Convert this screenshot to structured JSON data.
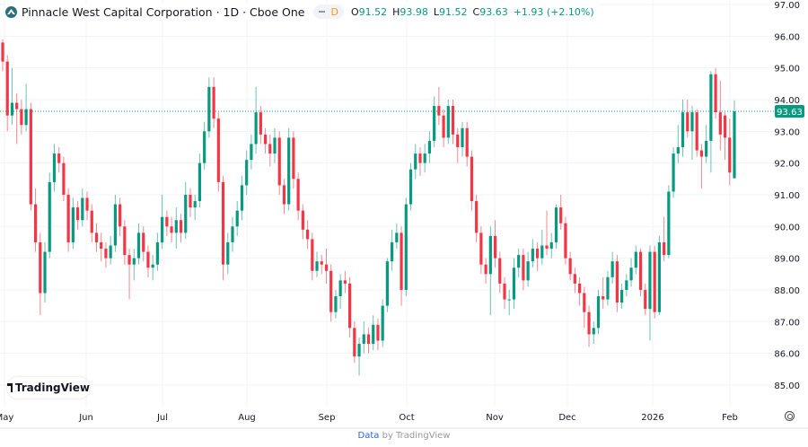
{
  "header": {
    "title": "Pinnacle West Capital Corporation · 1D · Cboe One",
    "interval_badge": "D",
    "ohlc": {
      "o_label": "O",
      "o": "91.52",
      "h_label": "H",
      "h": "93.98",
      "l_label": "L",
      "l": "91.52",
      "c_label": "C",
      "c": "93.63",
      "change": "+1.93 (+2.10%)"
    }
  },
  "badge": {
    "label": "TradingView"
  },
  "footer": {
    "link": "Data",
    "text": " by TradingView"
  },
  "colors": {
    "up": "#089981",
    "down": "#F23645",
    "grid": "#f0f3fa",
    "last_price": "#089981"
  },
  "icons": {
    "logo": "pinnacle-logo-icon",
    "settings": "settings-icon",
    "tv": "tradingview-logo-icon"
  },
  "chart_data": {
    "type": "candlestick",
    "ylim": [
      84.5,
      97.2
    ],
    "y_ticks": [
      "97.00",
      "96.00",
      "95.00",
      "94.00",
      "93.00",
      "92.00",
      "91.00",
      "90.00",
      "89.00",
      "88.00",
      "87.00",
      "86.00",
      "85.00"
    ],
    "x_ticks": [
      "May",
      "Jun",
      "Jul",
      "Aug",
      "Sep",
      "Oct",
      "Nov",
      "Dec",
      "2026",
      "Feb"
    ],
    "last_price": "93.63",
    "grid": true,
    "candles_ohlc": [
      [
        95.8,
        95.9,
        94.9,
        95.2
      ],
      [
        95.2,
        95.4,
        93.0,
        93.5
      ],
      [
        93.5,
        95.0,
        93.2,
        93.9
      ],
      [
        93.9,
        94.2,
        92.6,
        93.7
      ],
      [
        93.7,
        94.0,
        92.9,
        93.2
      ],
      [
        93.2,
        94.5,
        93.0,
        93.7
      ],
      [
        93.7,
        93.9,
        90.5,
        90.7
      ],
      [
        90.7,
        91.2,
        89.2,
        89.5
      ],
      [
        89.5,
        89.8,
        87.2,
        87.9
      ],
      [
        87.9,
        89.5,
        87.6,
        89.2
      ],
      [
        89.2,
        91.7,
        89.0,
        91.4
      ],
      [
        91.4,
        92.6,
        91.1,
        92.3
      ],
      [
        92.3,
        92.5,
        91.7,
        92.0
      ],
      [
        92.0,
        92.2,
        90.8,
        91.0
      ],
      [
        91.0,
        91.2,
        89.2,
        89.5
      ],
      [
        89.5,
        90.9,
        89.3,
        90.6
      ],
      [
        90.6,
        90.8,
        89.9,
        90.2
      ],
      [
        90.2,
        91.2,
        90.0,
        90.9
      ],
      [
        90.9,
        91.1,
        90.2,
        90.5
      ],
      [
        90.5,
        90.7,
        89.5,
        89.8
      ],
      [
        89.8,
        90.1,
        89.2,
        89.5
      ],
      [
        89.5,
        89.8,
        88.9,
        89.3
      ],
      [
        89.3,
        89.5,
        88.7,
        89.0
      ],
      [
        89.0,
        89.7,
        88.8,
        89.4
      ],
      [
        89.4,
        91.0,
        89.2,
        90.7
      ],
      [
        90.7,
        90.9,
        89.7,
        90.0
      ],
      [
        90.0,
        90.2,
        88.8,
        89.1
      ],
      [
        89.1,
        89.3,
        87.7,
        88.8
      ],
      [
        88.8,
        89.3,
        88.3,
        89.0
      ],
      [
        89.0,
        90.1,
        88.8,
        89.8
      ],
      [
        89.8,
        90.0,
        88.9,
        89.2
      ],
      [
        89.2,
        89.4,
        88.4,
        88.7
      ],
      [
        88.7,
        89.1,
        88.3,
        88.8
      ],
      [
        88.8,
        89.8,
        88.6,
        89.5
      ],
      [
        89.5,
        91.0,
        89.3,
        90.3
      ],
      [
        90.3,
        90.5,
        89.7,
        90.0
      ],
      [
        90.0,
        90.3,
        89.5,
        89.8
      ],
      [
        89.8,
        90.6,
        89.3,
        90.2
      ],
      [
        90.2,
        90.4,
        89.5,
        89.8
      ],
      [
        89.8,
        91.4,
        89.6,
        91.0
      ],
      [
        91.0,
        91.2,
        90.3,
        90.6
      ],
      [
        90.6,
        91.0,
        90.2,
        90.8
      ],
      [
        90.8,
        92.3,
        90.6,
        92.0
      ],
      [
        92.0,
        93.3,
        91.8,
        93.0
      ],
      [
        93.0,
        94.7,
        92.8,
        94.4
      ],
      [
        94.4,
        94.7,
        93.1,
        93.4
      ],
      [
        93.4,
        93.6,
        91.1,
        91.4
      ],
      [
        91.4,
        91.6,
        88.3,
        88.8
      ],
      [
        88.8,
        89.8,
        88.5,
        89.5
      ],
      [
        89.5,
        90.3,
        89.2,
        90.0
      ],
      [
        90.0,
        90.8,
        89.7,
        90.5
      ],
      [
        90.5,
        91.6,
        90.2,
        91.3
      ],
      [
        91.3,
        92.4,
        91.0,
        92.1
      ],
      [
        92.1,
        92.9,
        91.8,
        92.6
      ],
      [
        92.6,
        94.4,
        92.3,
        93.6
      ],
      [
        93.6,
        93.8,
        92.6,
        92.9
      ],
      [
        92.9,
        93.1,
        92.3,
        92.6
      ],
      [
        92.6,
        92.9,
        91.9,
        92.3
      ],
      [
        92.3,
        93.1,
        92.0,
        92.8
      ],
      [
        92.8,
        93.0,
        91.0,
        91.3
      ],
      [
        91.3,
        91.5,
        90.4,
        90.7
      ],
      [
        90.7,
        93.1,
        90.5,
        92.8
      ],
      [
        92.8,
        93.0,
        91.2,
        91.5
      ],
      [
        91.5,
        91.7,
        90.2,
        90.5
      ],
      [
        90.5,
        90.7,
        89.6,
        89.9
      ],
      [
        89.9,
        90.2,
        89.3,
        89.6
      ],
      [
        89.6,
        89.8,
        88.3,
        88.6
      ],
      [
        88.6,
        89.2,
        88.4,
        88.9
      ],
      [
        88.9,
        89.1,
        88.5,
        88.8
      ],
      [
        88.8,
        89.3,
        88.2,
        88.6
      ],
      [
        88.6,
        88.8,
        87.0,
        87.3
      ],
      [
        87.3,
        88.0,
        87.1,
        87.8
      ],
      [
        87.8,
        88.5,
        87.4,
        88.3
      ],
      [
        88.3,
        88.6,
        87.9,
        88.2
      ],
      [
        88.2,
        88.4,
        86.5,
        86.8
      ],
      [
        86.8,
        87.0,
        85.7,
        85.9
      ],
      [
        85.9,
        86.5,
        85.3,
        86.3
      ],
      [
        86.3,
        87.0,
        86.0,
        86.6
      ],
      [
        86.6,
        86.8,
        86.0,
        86.3
      ],
      [
        86.3,
        87.2,
        86.1,
        86.9
      ],
      [
        86.9,
        87.1,
        86.1,
        86.4
      ],
      [
        86.4,
        87.7,
        86.2,
        87.5
      ],
      [
        87.5,
        89.0,
        87.3,
        88.9
      ],
      [
        88.9,
        89.9,
        88.6,
        89.5
      ],
      [
        89.5,
        90.1,
        89.3,
        89.8
      ],
      [
        89.8,
        90.0,
        87.5,
        88.0
      ],
      [
        88.0,
        90.9,
        87.8,
        90.7
      ],
      [
        90.7,
        92.0,
        90.5,
        91.8
      ],
      [
        91.8,
        92.6,
        91.5,
        92.3
      ],
      [
        92.3,
        92.5,
        91.6,
        92.0
      ],
      [
        92.0,
        92.6,
        91.7,
        92.3
      ],
      [
        92.3,
        93.0,
        92.0,
        92.7
      ],
      [
        92.7,
        94.1,
        92.5,
        93.8
      ],
      [
        93.8,
        94.4,
        93.2,
        93.5
      ],
      [
        93.5,
        93.7,
        92.5,
        92.8
      ],
      [
        92.8,
        94.0,
        92.6,
        93.8
      ],
      [
        93.8,
        94.0,
        92.6,
        92.9
      ],
      [
        92.9,
        93.1,
        92.0,
        92.5
      ],
      [
        92.5,
        93.3,
        92.2,
        93.1
      ],
      [
        93.1,
        93.3,
        91.9,
        92.2
      ],
      [
        92.2,
        92.4,
        90.5,
        90.8
      ],
      [
        90.8,
        91.0,
        89.5,
        89.8
      ],
      [
        89.8,
        90.0,
        88.5,
        88.8
      ],
      [
        88.8,
        89.0,
        88.2,
        88.5
      ],
      [
        88.5,
        90.0,
        87.2,
        89.7
      ],
      [
        89.7,
        90.2,
        88.7,
        89.0
      ],
      [
        89.0,
        89.2,
        87.9,
        88.2
      ],
      [
        88.2,
        88.4,
        87.4,
        87.7
      ],
      [
        87.7,
        88.0,
        87.2,
        87.7
      ],
      [
        87.7,
        89.0,
        87.4,
        88.7
      ],
      [
        88.7,
        89.3,
        88.4,
        89.1
      ],
      [
        89.1,
        89.3,
        88.0,
        88.3
      ],
      [
        88.3,
        89.2,
        88.1,
        88.9
      ],
      [
        88.9,
        89.6,
        88.7,
        89.3
      ],
      [
        89.3,
        89.5,
        88.6,
        89.0
      ],
      [
        89.0,
        89.9,
        88.8,
        89.4
      ],
      [
        89.4,
        90.5,
        89.1,
        89.3
      ],
      [
        89.3,
        89.8,
        89.0,
        89.5
      ],
      [
        89.5,
        90.7,
        89.3,
        90.6
      ],
      [
        90.6,
        91.0,
        89.9,
        90.1
      ],
      [
        90.1,
        90.3,
        88.8,
        89.0
      ],
      [
        89.0,
        89.2,
        88.3,
        88.5
      ],
      [
        88.5,
        88.7,
        87.9,
        88.2
      ],
      [
        88.2,
        88.4,
        87.5,
        87.9
      ],
      [
        87.9,
        88.1,
        86.8,
        87.3
      ],
      [
        87.3,
        87.5,
        86.2,
        86.6
      ],
      [
        86.6,
        87.0,
        86.3,
        86.8
      ],
      [
        86.8,
        88.0,
        86.6,
        87.8
      ],
      [
        87.8,
        88.4,
        87.4,
        87.7
      ],
      [
        87.7,
        88.6,
        87.5,
        88.4
      ],
      [
        88.4,
        89.2,
        88.2,
        88.9
      ],
      [
        88.9,
        89.1,
        87.3,
        87.6
      ],
      [
        87.6,
        88.2,
        87.4,
        88.0
      ],
      [
        88.0,
        88.5,
        87.8,
        88.3
      ],
      [
        88.3,
        89.0,
        88.1,
        88.7
      ],
      [
        88.7,
        89.4,
        88.5,
        89.2
      ],
      [
        89.2,
        89.3,
        87.8,
        88.0
      ],
      [
        88.0,
        88.2,
        87.2,
        87.4
      ],
      [
        87.4,
        89.4,
        86.4,
        89.2
      ],
      [
        89.2,
        89.4,
        87.1,
        87.3
      ],
      [
        87.3,
        89.7,
        87.2,
        89.5
      ],
      [
        89.5,
        90.3,
        88.9,
        89.1
      ],
      [
        89.1,
        91.3,
        89.0,
        91.1
      ],
      [
        91.1,
        92.5,
        90.9,
        92.3
      ],
      [
        92.3,
        93.2,
        92.0,
        92.5
      ],
      [
        92.5,
        94.0,
        92.2,
        93.6
      ],
      [
        93.6,
        94.0,
        92.8,
        93.0
      ],
      [
        93.0,
        93.8,
        92.1,
        93.6
      ],
      [
        93.6,
        93.7,
        92.2,
        92.4
      ],
      [
        92.4,
        92.6,
        91.2,
        92.2
      ],
      [
        92.2,
        93.2,
        92.0,
        92.7
      ],
      [
        92.7,
        94.9,
        91.7,
        94.8
      ],
      [
        94.8,
        95.0,
        93.4,
        93.6
      ],
      [
        93.6,
        94.6,
        92.4,
        92.9
      ],
      [
        93.5,
        93.6,
        92.1,
        92.8
      ],
      [
        92.8,
        93.4,
        91.3,
        91.7
      ],
      [
        91.52,
        93.98,
        91.52,
        93.63
      ]
    ]
  }
}
